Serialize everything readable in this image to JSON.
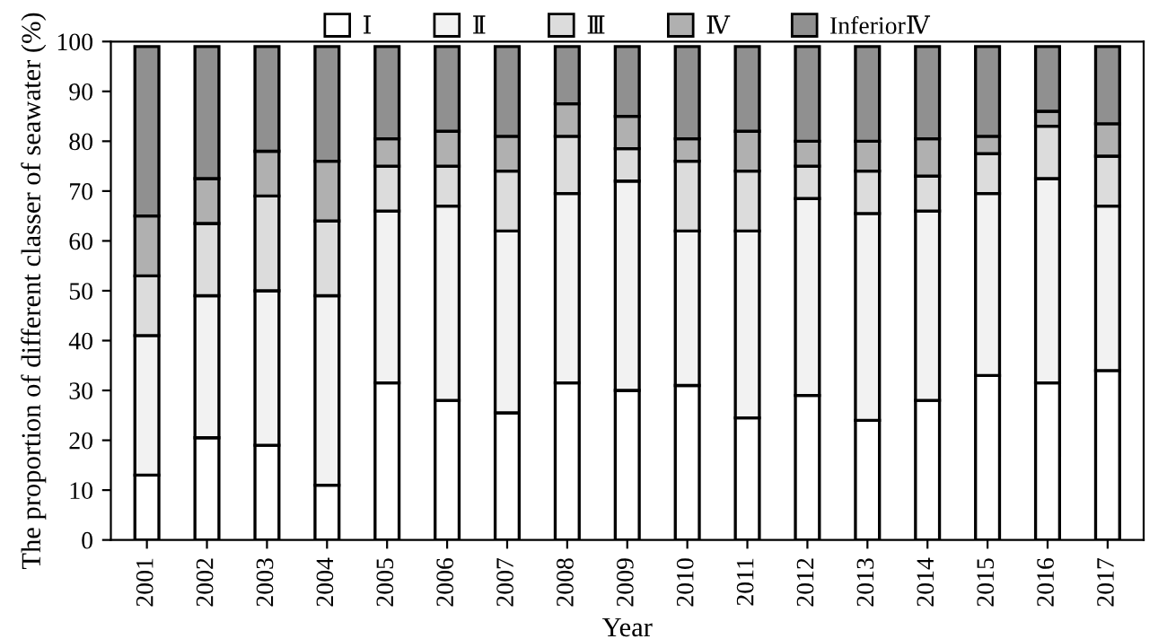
{
  "chart_data": {
    "type": "bar",
    "stacked": true,
    "xlabel": "Year",
    "ylabel": "The proportion of different classer of seawater (%)",
    "categories": [
      "2001",
      "2002",
      "2003",
      "2004",
      "2005",
      "2006",
      "2007",
      "2008",
      "2009",
      "2010",
      "2011",
      "2012",
      "2013",
      "2014",
      "2015",
      "2016",
      "2017"
    ],
    "series": [
      {
        "name": "Ⅰ",
        "color": "#ffffff",
        "values": [
          13,
          20.5,
          19,
          11,
          31.5,
          28,
          25.5,
          31.5,
          30,
          31,
          24.5,
          29,
          24,
          28,
          33,
          31.5,
          34
        ]
      },
      {
        "name": "Ⅱ",
        "color": "#f2f2f2",
        "values": [
          28,
          28.5,
          31,
          38,
          34.5,
          39,
          36.5,
          38,
          42,
          31,
          37.5,
          39.5,
          41.5,
          38,
          36.5,
          41,
          33
        ]
      },
      {
        "name": "Ⅲ",
        "color": "#dcdcdc",
        "values": [
          12,
          14.5,
          19,
          15,
          9,
          8,
          12,
          11.5,
          6.5,
          14,
          12,
          6.5,
          8.5,
          7,
          8,
          10.5,
          10
        ]
      },
      {
        "name": "Ⅳ",
        "color": "#b0b0b0",
        "values": [
          12,
          9,
          9,
          12,
          5.5,
          7,
          7,
          6.5,
          6.5,
          4.5,
          8,
          5,
          6,
          7.5,
          3.5,
          3,
          6.5
        ]
      },
      {
        "name": "InferiorⅣ",
        "color": "#909090",
        "values": [
          34,
          26.5,
          21,
          23,
          18.5,
          17,
          18,
          11.5,
          14,
          18.5,
          17,
          19,
          19,
          18.5,
          18,
          13,
          15.5
        ]
      }
    ],
    "ylim": [
      0,
      100
    ],
    "yticks": [
      0,
      10,
      20,
      30,
      40,
      50,
      60,
      70,
      80,
      90,
      100
    ],
    "grid": false,
    "legend": "top"
  }
}
